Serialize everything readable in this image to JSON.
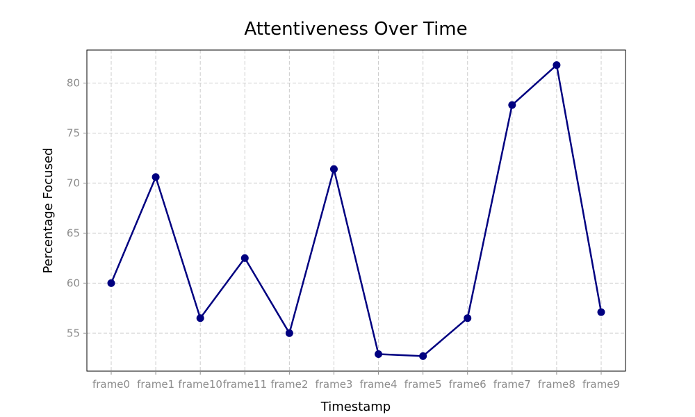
{
  "chart_data": {
    "type": "line",
    "title": "Attentiveness Over Time",
    "xlabel": "Timestamp",
    "ylabel": "Percentage Focused",
    "categories": [
      "frame0",
      "frame1",
      "frame10",
      "frame11",
      "frame2",
      "frame3",
      "frame4",
      "frame5",
      "frame6",
      "frame7",
      "frame8",
      "frame9"
    ],
    "series": [
      {
        "values": [
          60.0,
          70.6,
          56.5,
          62.5,
          55.0,
          71.4,
          52.9,
          52.7,
          56.5,
          77.8,
          81.8,
          57.1
        ]
      }
    ],
    "yticks": [
      55,
      60,
      65,
      70,
      75,
      80
    ],
    "ylim": [
      51.2,
      83.3
    ],
    "grid": true,
    "line_color": "#000080",
    "marker_color": "#000080"
  }
}
